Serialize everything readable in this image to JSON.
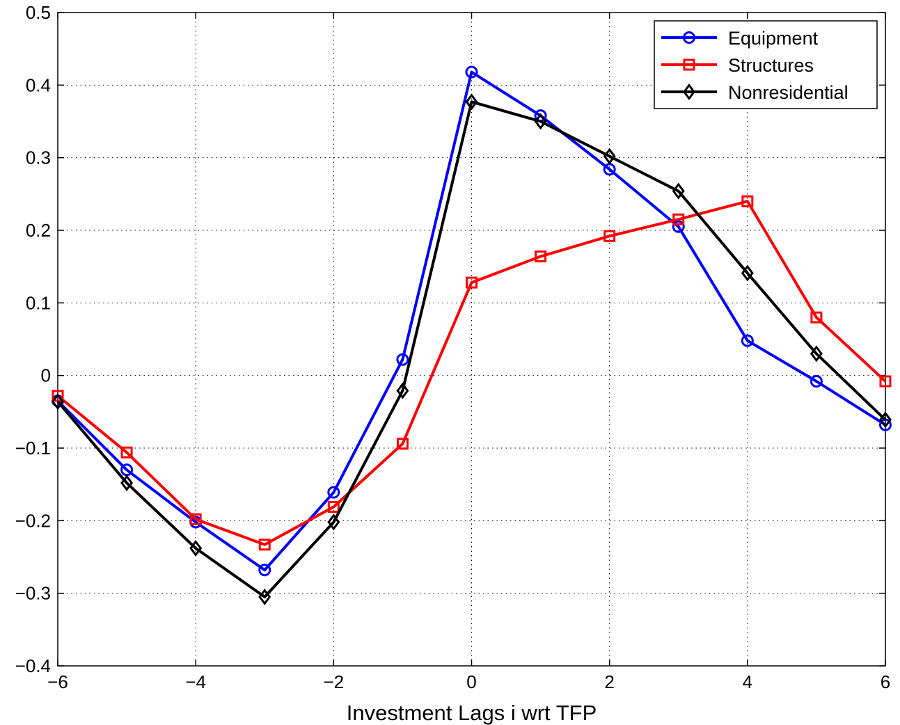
{
  "chart_data": {
    "type": "line",
    "title": "",
    "xlabel": "Investment Lags i wrt TFP",
    "ylabel": "",
    "xlim": [
      -6,
      6
    ],
    "ylim": [
      -0.4,
      0.5
    ],
    "xticks": [
      -6,
      -4,
      -2,
      0,
      2,
      4,
      6
    ],
    "xtick_labels": [
      "−6",
      "−4",
      "−2",
      "0",
      "2",
      "4",
      "6"
    ],
    "yticks": [
      -0.4,
      -0.3,
      -0.2,
      -0.1,
      0,
      0.1,
      0.2,
      0.3,
      0.4,
      0.5
    ],
    "ytick_labels": [
      "−0.4",
      "−0.3",
      "−0.2",
      "−0.1",
      "0",
      "0.1",
      "0.2",
      "0.3",
      "0.4",
      "0.5"
    ],
    "grid": true,
    "legend_position": "top-right",
    "x": [
      -6,
      -5,
      -4,
      -3,
      -2,
      -1,
      0,
      1,
      2,
      3,
      4,
      5,
      6
    ],
    "series": [
      {
        "name": "Equipment",
        "color": "#0000ff",
        "marker": "circle",
        "values": [
          -0.035,
          -0.13,
          -0.202,
          -0.268,
          -0.161,
          0.022,
          0.418,
          0.358,
          0.284,
          0.205,
          0.048,
          -0.008,
          -0.068
        ]
      },
      {
        "name": "Structures",
        "color": "#ff0000",
        "marker": "square",
        "values": [
          -0.028,
          -0.106,
          -0.198,
          -0.233,
          -0.181,
          -0.094,
          0.128,
          0.164,
          0.192,
          0.215,
          0.24,
          0.08,
          -0.008
        ]
      },
      {
        "name": "Nonresidential",
        "color": "#000000",
        "marker": "diamond",
        "values": [
          -0.036,
          -0.148,
          -0.238,
          -0.305,
          -0.202,
          -0.021,
          0.377,
          0.35,
          0.302,
          0.254,
          0.141,
          0.03,
          -0.061
        ]
      }
    ]
  }
}
